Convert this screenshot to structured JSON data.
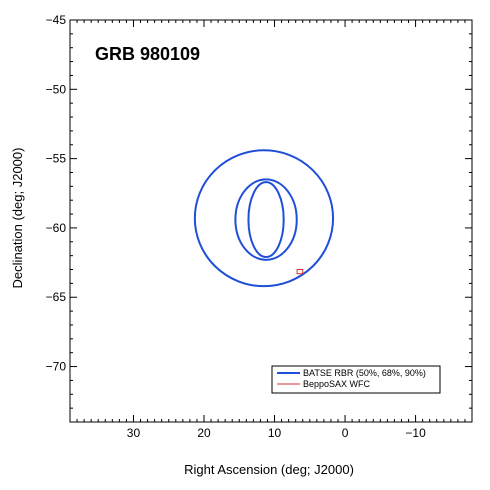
{
  "chart_data": {
    "type": "line",
    "title": "GRB 980109",
    "xlabel": "Right Ascension (deg; J2000)",
    "ylabel": "Declination (deg; J2000)",
    "xlim": [
      39,
      -18
    ],
    "ylim": [
      -74,
      -45
    ],
    "x_ticks": [
      30,
      20,
      10,
      0,
      -10
    ],
    "y_ticks": [
      -45,
      -50,
      -55,
      -60,
      -65,
      -70
    ],
    "grid": false,
    "legend_position": "bottom-right",
    "series": [
      {
        "name": "BATSE RBR (50%, 68%, 90%)",
        "color": "#1f4fd8",
        "contours": [
          {
            "center": [
              11.2,
              -59.4
            ],
            "rx": 5.0,
            "ry": 2.7
          },
          {
            "center": [
              11.2,
              -59.4
            ],
            "rx": 8.7,
            "ry": 2.9
          },
          {
            "center": [
              11.5,
              -59.3
            ],
            "rx": 19.6,
            "ry": 4.9
          }
        ]
      },
      {
        "name": "BeppoSAX WFC",
        "color": "#d83030",
        "boxes": [
          {
            "x": [
              6.8,
              6.0
            ],
            "y": [
              -63.0,
              -63.3
            ]
          }
        ]
      }
    ]
  }
}
